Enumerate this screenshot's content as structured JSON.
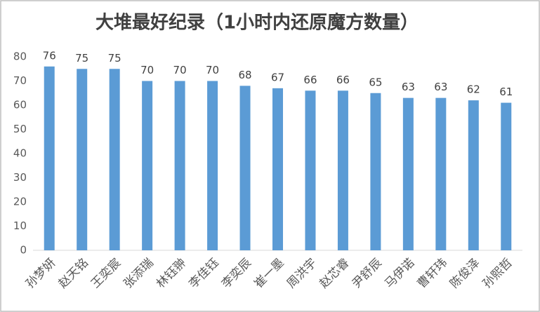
{
  "chart_data": {
    "type": "bar",
    "title": "大堆最好纪录（1小时内还原魔方数量）",
    "categories": [
      "孙梦妍",
      "赵天铭",
      "王奕宸",
      "张添瑞",
      "林钰翀",
      "李佳钰",
      "李奕辰",
      "崔一墨",
      "周洪宇",
      "赵芯睿",
      "尹舒辰",
      "马伊诺",
      "曹轩玮",
      "陈俊泽",
      "孙熙哲"
    ],
    "values": [
      76,
      75,
      75,
      70,
      70,
      70,
      68,
      67,
      66,
      66,
      65,
      63,
      63,
      62,
      61
    ],
    "color": "#5b9bd5",
    "ylim": [
      0,
      80
    ],
    "yticks": [
      0,
      10,
      20,
      30,
      40,
      50,
      60,
      70,
      80
    ],
    "grid": false
  }
}
